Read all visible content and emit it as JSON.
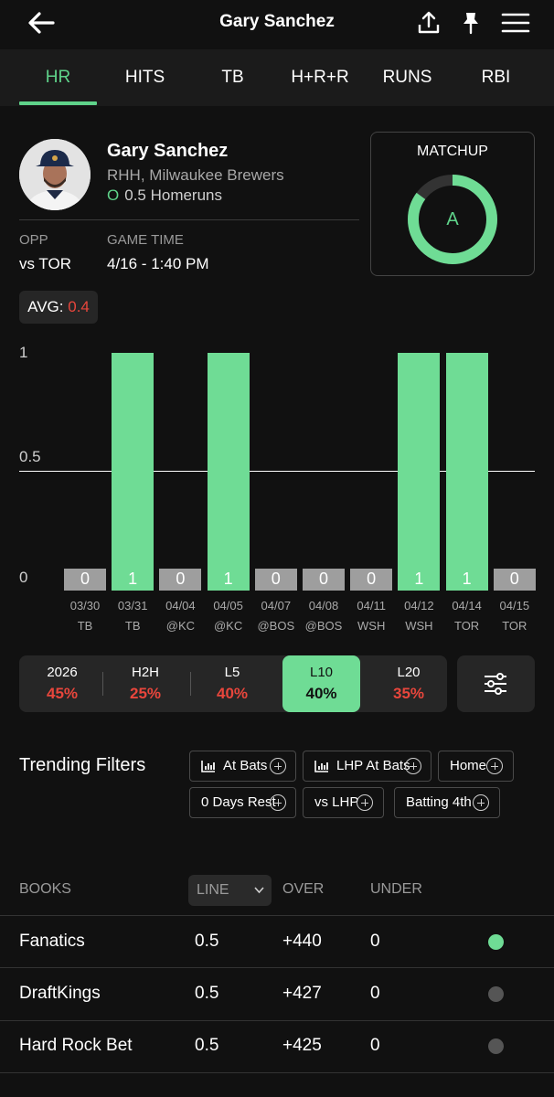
{
  "header": {
    "title": "Gary Sanchez",
    "back_icon": "arrow-left-icon",
    "share_icon": "share-icon",
    "pin_icon": "pin-icon",
    "menu_icon": "hamburger-menu-icon"
  },
  "tabs": [
    {
      "label": "HR",
      "active": true
    },
    {
      "label": "HITS",
      "active": false
    },
    {
      "label": "TB",
      "active": false
    },
    {
      "label": "H+R+R",
      "active": false
    },
    {
      "label": "RUNS",
      "active": false
    },
    {
      "label": "RBI",
      "active": false
    }
  ],
  "player": {
    "name": "Gary Sanchez",
    "team": "RHH, Milwaukee Brewers",
    "line_prefix": "O",
    "line_text": "0.5 Homeruns"
  },
  "game": {
    "opp_label": "OPP",
    "opp_value": "vs TOR",
    "time_label": "GAME TIME",
    "time_value": "4/16 - 1:40 PM"
  },
  "matchup": {
    "title": "MATCHUP",
    "grade": "A",
    "ring_fill": 0.85
  },
  "avg": {
    "label": "AVG:",
    "value": "0.4"
  },
  "chart_data": {
    "type": "bar",
    "ylim": [
      0,
      1
    ],
    "yticks": [
      "1",
      "0.5",
      "0"
    ],
    "reference_line": 0.5,
    "categories": [
      "03/30",
      "03/31",
      "04/04",
      "04/05",
      "04/07",
      "04/08",
      "04/11",
      "04/12",
      "04/14",
      "04/15"
    ],
    "opponents": [
      "TB",
      "TB",
      "@KC",
      "@KC",
      "@BOS",
      "@BOS",
      "WSH",
      "WSH",
      "TOR",
      "TOR"
    ],
    "values": [
      0,
      1,
      0,
      1,
      0,
      0,
      0,
      1,
      1,
      0
    ],
    "value_labels": [
      "0",
      "1",
      "0",
      "1",
      "0",
      "0",
      "0",
      "1",
      "1",
      "0"
    ]
  },
  "splits": [
    {
      "label": "2026",
      "value": "45%",
      "active": false
    },
    {
      "label": "H2H",
      "value": "25%",
      "active": false
    },
    {
      "label": "L5",
      "value": "40%",
      "active": false
    },
    {
      "label": "L10",
      "value": "40%",
      "active": true
    },
    {
      "label": "L20",
      "value": "35%",
      "active": false
    }
  ],
  "filter_icon": "sliders-icon",
  "trending": {
    "title": "Trending Filters",
    "chips": [
      {
        "label": "At Bats",
        "icon": "bar-chart-icon"
      },
      {
        "label": "LHP At Bats",
        "icon": "bar-chart-icon"
      },
      {
        "label": "Home",
        "icon": ""
      },
      {
        "label": "0 Days Rest",
        "icon": ""
      },
      {
        "label": "vs LHP",
        "icon": ""
      },
      {
        "label": "Batting 4th",
        "icon": ""
      }
    ]
  },
  "books": {
    "headers": {
      "books": "BOOKS",
      "line": "LINE",
      "over": "OVER",
      "under": "UNDER"
    },
    "rows": [
      {
        "name": "Fanatics",
        "line": "0.5",
        "over": "+440",
        "under": "0",
        "status_color": "#6fdc95"
      },
      {
        "name": "DraftKings",
        "line": "0.5",
        "over": "+427",
        "under": "0",
        "status_color": "#555555"
      },
      {
        "name": "Hard Rock Bet",
        "line": "0.5",
        "over": "+425",
        "under": "0",
        "status_color": "#555555"
      }
    ]
  },
  "colors": {
    "accent": "#6fdc95",
    "negative": "#e8463c",
    "background": "#111111"
  }
}
